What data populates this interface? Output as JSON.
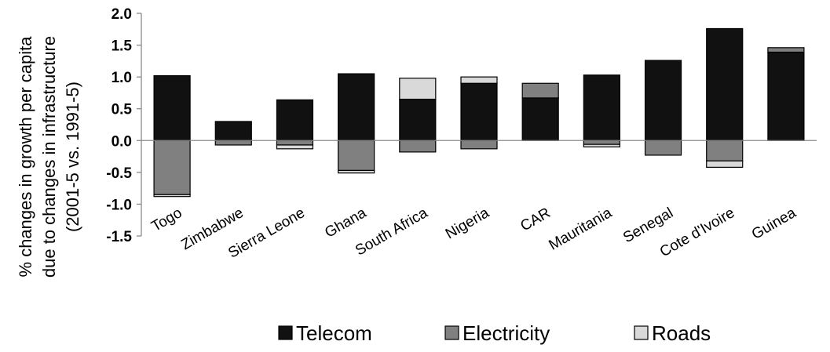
{
  "chart_data": {
    "type": "bar",
    "stacked": true,
    "categories": [
      "Togo",
      "Zimbabwe",
      "Sierra Leone",
      "Ghana",
      "South Africa",
      "Nigeria",
      "CAR",
      "Mauritania",
      "Senegal",
      "Cote d'Ivoire",
      "Guinea"
    ],
    "series": [
      {
        "name": "Telecom",
        "color": "#111111",
        "values": [
          1.02,
          0.3,
          0.64,
          1.05,
          0.65,
          0.9,
          0.67,
          1.03,
          1.26,
          1.76,
          1.39
        ]
      },
      {
        "name": "Electricity",
        "color": "#808080",
        "values": [
          -0.85,
          -0.07,
          -0.07,
          -0.47,
          -0.18,
          -0.13,
          0.23,
          -0.06,
          -0.23,
          -0.32,
          0.07
        ]
      },
      {
        "name": "Roads",
        "color": "#d9d9d9",
        "values": [
          -0.03,
          0.0,
          -0.06,
          -0.04,
          0.33,
          0.1,
          0.0,
          -0.04,
          0.0,
          -0.1,
          0.0
        ]
      }
    ],
    "ylabel": [
      "% changes in growth per capita",
      "due to changes in infrastructure",
      "(2001-5 vs. 1991-5)"
    ],
    "yticks": [
      "2.0",
      "1.5",
      "1.0",
      "0.5",
      "0.0",
      "-0.5",
      "-1.0",
      "-1.5"
    ],
    "ylim": [
      -1.5,
      2.0
    ],
    "grid": false,
    "legend_position": "bottom"
  }
}
